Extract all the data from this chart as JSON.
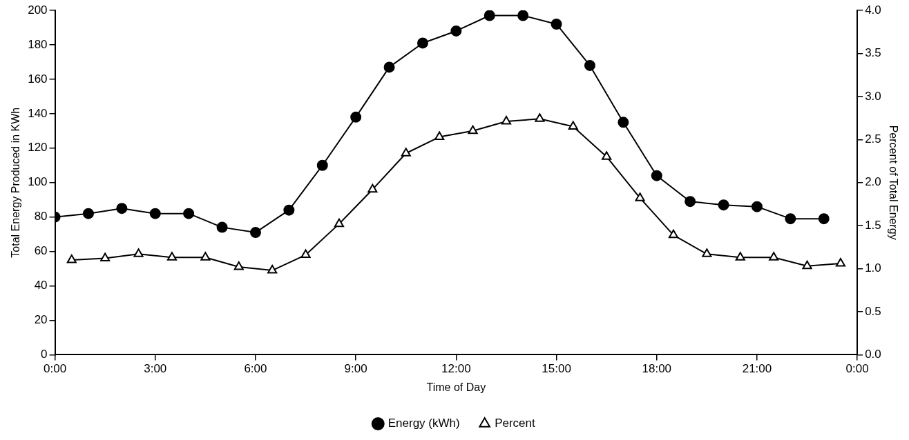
{
  "chart_data": {
    "type": "line",
    "xlabel": "Time of Day",
    "ylabel": "Total Energy Produced in KWh",
    "y2label": "Percent of Total Energy",
    "xlim": [
      0,
      24
    ],
    "xticks": [
      {
        "value": 0,
        "label": "0:00"
      },
      {
        "value": 3,
        "label": "3:00"
      },
      {
        "value": 6,
        "label": "6:00"
      },
      {
        "value": 9,
        "label": "9:00"
      },
      {
        "value": 12,
        "label": "12:00"
      },
      {
        "value": 15,
        "label": "15:00"
      },
      {
        "value": 18,
        "label": "18:00"
      },
      {
        "value": 21,
        "label": "21:00"
      },
      {
        "value": 24,
        "label": "0:00"
      }
    ],
    "ylim": [
      0,
      200
    ],
    "yticks": [
      0,
      20,
      40,
      60,
      80,
      100,
      120,
      140,
      160,
      180,
      200
    ],
    "y2lim": [
      0,
      4
    ],
    "y2ticks": [
      {
        "value": 0,
        "label": "0.0"
      },
      {
        "value": 0.5,
        "label": "0.5"
      },
      {
        "value": 1,
        "label": "1.0"
      },
      {
        "value": 1.5,
        "label": "1.5"
      },
      {
        "value": 2,
        "label": "2.0"
      },
      {
        "value": 2.5,
        "label": "2.5"
      },
      {
        "value": 3,
        "label": "3.0"
      },
      {
        "value": 3.5,
        "label": "3.5"
      },
      {
        "value": 4,
        "label": "4.0"
      }
    ],
    "grid": false,
    "legend": "bottom",
    "line_style": "solid",
    "series": [
      {
        "name": "Energy (kWh)",
        "color": "#000000",
        "marker": "circle",
        "x": [
          0,
          1,
          2,
          3,
          4,
          5,
          6,
          7,
          8,
          9,
          10,
          11,
          12,
          13,
          14,
          15,
          16,
          17,
          18,
          19,
          20,
          21,
          22,
          23
        ],
        "values": [
          80,
          82,
          85,
          82,
          82,
          74,
          71,
          84,
          110,
          138,
          167,
          181,
          188,
          197,
          197,
          192,
          168,
          135,
          104,
          89,
          87,
          86,
          79,
          79
        ]
      },
      {
        "name": "Percent",
        "color": "#000000",
        "marker": "triangle",
        "axis": "y2",
        "x": [
          0.5,
          1.5,
          2.5,
          3.5,
          4.5,
          5.5,
          6.5,
          7.5,
          8.5,
          9.5,
          10.5,
          11.5,
          12.5,
          13.5,
          14.5,
          15.5,
          16.5,
          17.5,
          18.5,
          19.5,
          20.5,
          21.5,
          22.5,
          23.5
        ],
        "values": [
          1.1,
          1.12,
          1.17,
          1.13,
          1.13,
          1.02,
          0.98,
          1.16,
          1.52,
          1.92,
          2.34,
          2.53,
          2.6,
          2.71,
          2.74,
          2.65,
          2.3,
          1.82,
          1.39,
          1.17,
          1.13,
          1.13,
          1.03,
          1.06
        ]
      }
    ]
  }
}
